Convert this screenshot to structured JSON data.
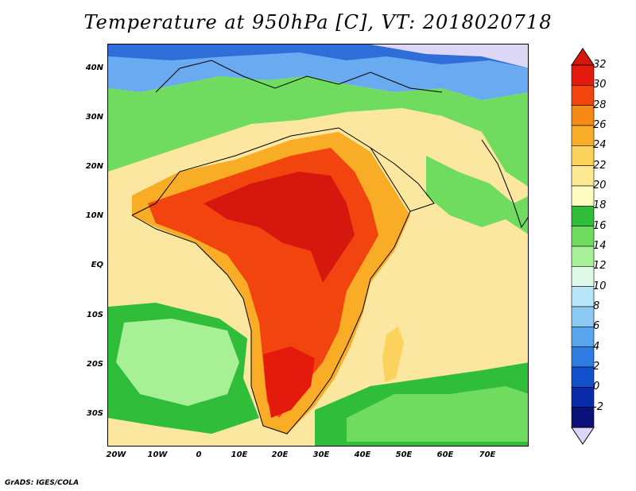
{
  "title": "Temperature at 950hPa [C], VT: 2018020718",
  "credit": "GrADS: IGES/COLA",
  "map": {
    "lon_range": [
      -20,
      80
    ],
    "lat_range": [
      -37,
      46
    ],
    "lat_ticks": [
      "40N",
      "30N",
      "20N",
      "10N",
      "EQ",
      "10S",
      "20S",
      "30S"
    ],
    "lon_ticks": [
      "20W",
      "10W",
      "0",
      "10E",
      "20E",
      "30E",
      "40E",
      "50E",
      "60E",
      "70E"
    ]
  },
  "colorbar": {
    "levels": [
      "32",
      "30",
      "28",
      "26",
      "24",
      "22",
      "20",
      "18",
      "16",
      "14",
      "12",
      "10",
      "8",
      "6",
      "4",
      "2",
      "0",
      "-2"
    ],
    "colors": [
      "#e31a0c",
      "#f2440f",
      "#f58a14",
      "#f9ad27",
      "#fbd35c",
      "#fdeb94",
      "#fefcc0",
      "#2fbd3a",
      "#6fdc5f",
      "#a7f096",
      "#def9e8",
      "#b8e5fa",
      "#8cc9f5",
      "#58a7ee",
      "#2f7de3",
      "#1351cc",
      "#0a2ba7",
      "#0b117a"
    ],
    "top_color": "#d5170d",
    "bottom_color": "#dcd7f5"
  }
}
